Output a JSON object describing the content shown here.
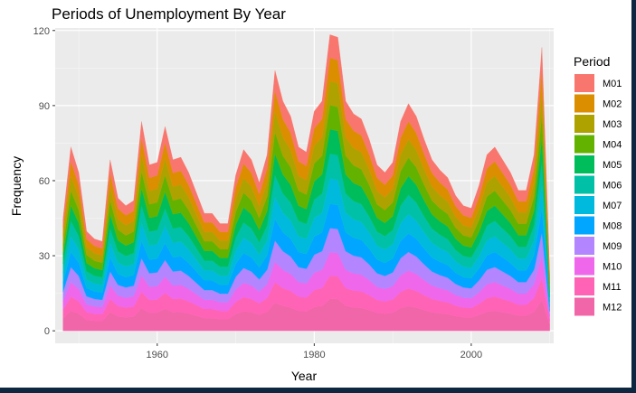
{
  "chart_data": {
    "type": "area",
    "stacked": true,
    "title": "Periods of Unemployment By Year",
    "xlabel": "Year",
    "ylabel": "Frequency",
    "xlim": [
      1947,
      2010.5
    ],
    "ylim": [
      -5,
      121
    ],
    "x_ticks": [
      1960,
      1980,
      2000
    ],
    "y_ticks": [
      0,
      30,
      60,
      90,
      120
    ],
    "grid": true,
    "legend": {
      "title": "Period",
      "position": "right"
    },
    "x": [
      1948,
      1949,
      1950,
      1951,
      1952,
      1953,
      1954,
      1955,
      1956,
      1957,
      1958,
      1959,
      1960,
      1961,
      1962,
      1963,
      1964,
      1965,
      1966,
      1967,
      1968,
      1969,
      1970,
      1971,
      1972,
      1973,
      1974,
      1975,
      1976,
      1977,
      1978,
      1979,
      1980,
      1981,
      1982,
      1983,
      1984,
      1985,
      1986,
      1987,
      1988,
      1989,
      1990,
      1991,
      1992,
      1993,
      1994,
      1995,
      1996,
      1997,
      1998,
      1999,
      2000,
      2001,
      2002,
      2003,
      2004,
      2005,
      2006,
      2007,
      2008,
      2009,
      2010
    ],
    "totals": [
      44,
      72,
      62,
      39,
      36,
      35,
      67,
      52,
      49,
      51,
      82,
      65,
      66,
      80,
      67,
      68,
      62,
      54,
      46,
      46,
      42,
      42,
      61,
      71,
      67,
      58,
      69,
      102,
      90,
      84,
      72,
      70,
      86,
      90,
      116,
      115,
      90,
      85,
      83,
      75,
      65,
      62,
      66,
      82,
      89,
      84,
      75,
      67,
      63,
      60,
      53,
      49,
      48,
      57,
      69,
      72,
      67,
      62,
      55,
      55,
      69,
      111,
      22
    ],
    "series": [
      {
        "name": "M01",
        "color": "#F8766D",
        "share": 0.0795
      },
      {
        "name": "M02",
        "color": "#DB8E00",
        "share": 0.0808
      },
      {
        "name": "M03",
        "color": "#AEA200",
        "share": 0.082
      },
      {
        "name": "M04",
        "color": "#64B200",
        "share": 0.0833
      },
      {
        "name": "M05",
        "color": "#00BD5C",
        "share": 0.0845
      },
      {
        "name": "M06",
        "color": "#00C1A7",
        "share": 0.0858
      },
      {
        "name": "M07",
        "color": "#00BADE",
        "share": 0.087
      },
      {
        "name": "M08",
        "color": "#00A6FF",
        "share": 0.0833
      },
      {
        "name": "M09",
        "color": "#B385FF",
        "share": 0.0833
      },
      {
        "name": "M10",
        "color": "#EF67EB",
        "share": 0.0808
      },
      {
        "name": "M11",
        "color": "#FF63B6",
        "share": 0.0795
      },
      {
        "name": "M12",
        "color": "#F066A8",
        "share": 0.1102
      }
    ]
  }
}
